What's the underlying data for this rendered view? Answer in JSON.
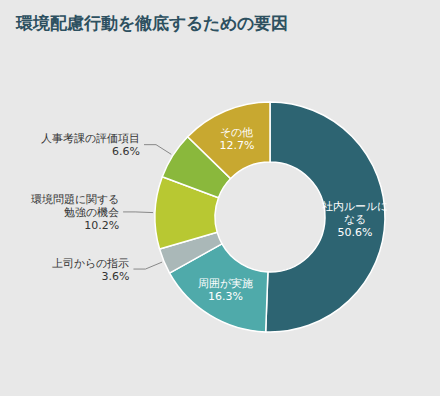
{
  "chart_data": {
    "type": "donut",
    "title": "環境配慮行動を徹底するための要因",
    "categories": [
      "社内ルールに\nなる",
      "周囲が実施",
      "上司からの指示",
      "環境問題に関する\n勉強の機会",
      "人事考課の評価項目",
      "その他"
    ],
    "values": [
      50.6,
      16.3,
      3.6,
      10.2,
      6.6,
      12.7
    ],
    "value_labels": [
      "50.6%",
      "16.3%",
      "3.6%",
      "10.2%",
      "6.6%",
      "12.7%"
    ],
    "colors": [
      "#2d6472",
      "#4faaaa",
      "#aab8b8",
      "#b8c832",
      "#8ab83c",
      "#c8a830"
    ]
  }
}
